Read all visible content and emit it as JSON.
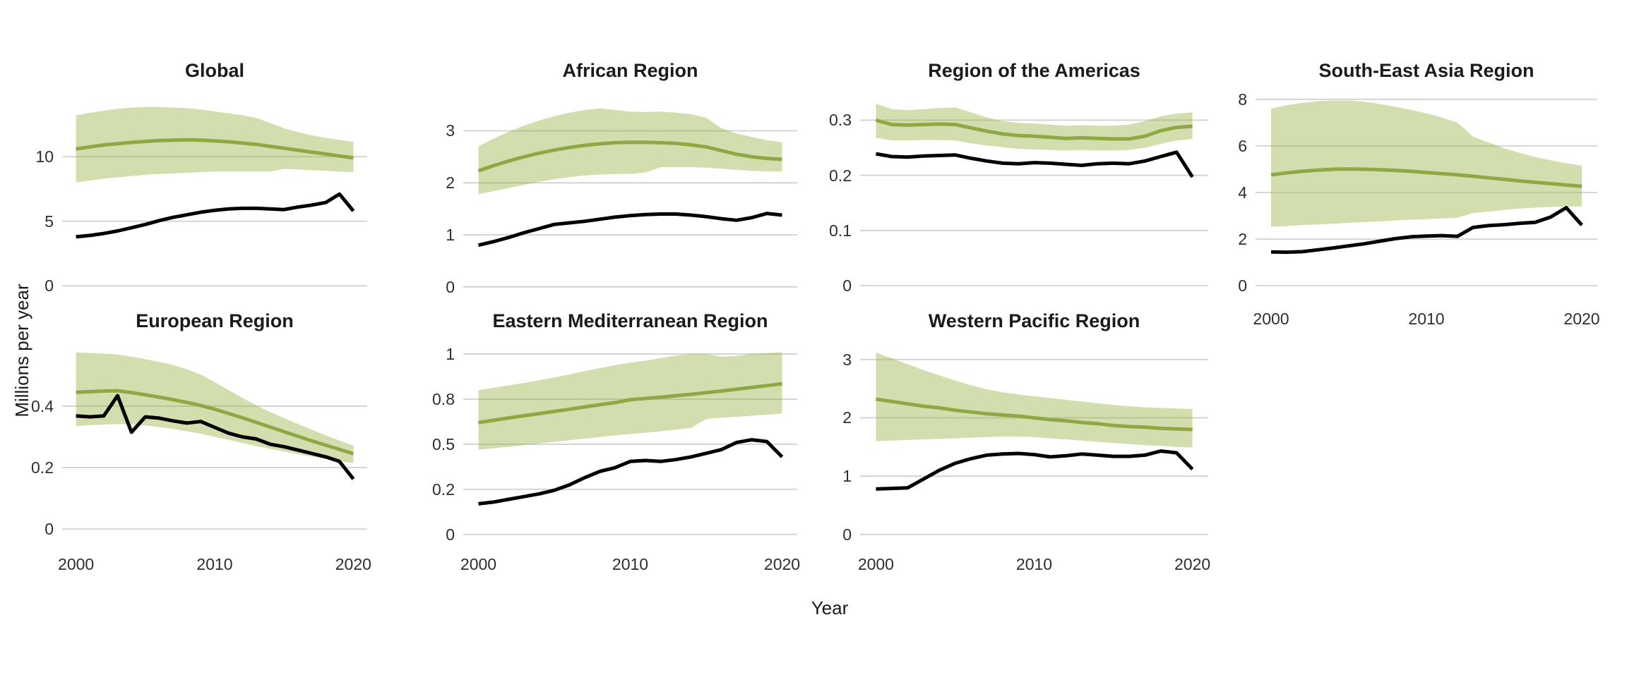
{
  "figure": {
    "background": "#ffffff"
  },
  "colors": {
    "band_apparent": "#d5dcb1",
    "band_base": "#9db64e",
    "band_opacity": 0.45,
    "estimate_line": "#8fa844",
    "notified_line": "#000000",
    "gridline": "#d4d4d4",
    "title_text": "#1b1b1b",
    "tick_text": "#2e2e2e"
  },
  "chart_data": {
    "type": "line",
    "xlabel": "Year",
    "ylabel": "Millions per year",
    "grid": "horizontal-only",
    "legend": "none",
    "years": [
      2000,
      2001,
      2002,
      2003,
      2004,
      2005,
      2006,
      2007,
      2008,
      2009,
      2010,
      2011,
      2012,
      2013,
      2014,
      2015,
      2016,
      2017,
      2018,
      2019,
      2020
    ],
    "panels": [
      {
        "id": "global",
        "title": "Global",
        "col": 0,
        "row": 0,
        "xlim": [
          1999,
          2021
        ],
        "ylim": [
          -0.8,
          15.3
        ],
        "xticks": [
          2000,
          2010,
          2020
        ],
        "show_x_labels": false,
        "yticks": [
          {
            "v": 0,
            "label": "0"
          },
          {
            "v": 5,
            "label": "5"
          },
          {
            "v": 10,
            "label": "10"
          }
        ],
        "series": {
          "green_line": [
            10.6,
            10.75,
            10.9,
            11.0,
            11.1,
            11.18,
            11.25,
            11.28,
            11.3,
            11.28,
            11.22,
            11.15,
            11.05,
            10.95,
            10.8,
            10.65,
            10.5,
            10.35,
            10.2,
            10.05,
            9.9
          ],
          "band_upper": [
            13.2,
            13.4,
            13.55,
            13.7,
            13.8,
            13.85,
            13.85,
            13.8,
            13.75,
            13.65,
            13.5,
            13.35,
            13.2,
            13.0,
            12.6,
            12.2,
            11.9,
            11.65,
            11.45,
            11.3,
            11.15
          ],
          "band_lower": [
            8.0,
            8.15,
            8.3,
            8.4,
            8.5,
            8.6,
            8.65,
            8.7,
            8.75,
            8.8,
            8.85,
            8.85,
            8.85,
            8.85,
            8.85,
            9.05,
            9.0,
            8.95,
            8.9,
            8.85,
            8.8
          ],
          "black_line": [
            3.8,
            3.9,
            4.05,
            4.25,
            4.5,
            4.75,
            5.05,
            5.3,
            5.5,
            5.7,
            5.85,
            5.95,
            6.0,
            6.0,
            5.95,
            5.9,
            6.1,
            6.25,
            6.45,
            7.1,
            5.8
          ]
        }
      },
      {
        "id": "african",
        "title": "African Region",
        "col": 1,
        "row": 0,
        "xlim": [
          1999,
          2021
        ],
        "ylim": [
          -0.18,
          3.82
        ],
        "xticks": [
          2000,
          2010,
          2020
        ],
        "show_x_labels": false,
        "yticks": [
          {
            "v": 0,
            "label": "0"
          },
          {
            "v": 1,
            "label": "1"
          },
          {
            "v": 2,
            "label": "2"
          },
          {
            "v": 3,
            "label": "3"
          }
        ],
        "series": {
          "green_line": [
            2.23,
            2.33,
            2.42,
            2.5,
            2.57,
            2.63,
            2.68,
            2.72,
            2.75,
            2.77,
            2.78,
            2.78,
            2.77,
            2.76,
            2.73,
            2.69,
            2.62,
            2.55,
            2.5,
            2.47,
            2.45
          ],
          "band_upper": [
            2.7,
            2.85,
            2.98,
            3.1,
            3.2,
            3.28,
            3.35,
            3.4,
            3.43,
            3.4,
            3.37,
            3.36,
            3.37,
            3.35,
            3.32,
            3.25,
            3.05,
            2.95,
            2.88,
            2.82,
            2.78
          ],
          "band_lower": [
            1.78,
            1.84,
            1.9,
            1.96,
            2.02,
            2.07,
            2.11,
            2.14,
            2.16,
            2.17,
            2.17,
            2.2,
            2.3,
            2.3,
            2.3,
            2.29,
            2.27,
            2.25,
            2.23,
            2.22,
            2.22
          ],
          "black_line": [
            0.8,
            0.87,
            0.95,
            1.04,
            1.12,
            1.2,
            1.23,
            1.26,
            1.3,
            1.34,
            1.37,
            1.39,
            1.4,
            1.4,
            1.38,
            1.35,
            1.31,
            1.28,
            1.33,
            1.41,
            1.38
          ]
        }
      },
      {
        "id": "americas",
        "title": "Region of the Americas",
        "col": 2,
        "row": 0,
        "xlim": [
          1999,
          2021
        ],
        "ylim": [
          -0.019,
          0.358
        ],
        "xticks": [
          2000,
          2010,
          2020
        ],
        "show_x_labels": false,
        "yticks": [
          {
            "v": 0,
            "label": "0"
          },
          {
            "v": 0.1,
            "label": "0.1"
          },
          {
            "v": 0.2,
            "label": "0.2"
          },
          {
            "v": 0.3,
            "label": "0.3"
          }
        ],
        "series": {
          "green_line": [
            0.3,
            0.292,
            0.291,
            0.292,
            0.293,
            0.292,
            0.286,
            0.28,
            0.275,
            0.272,
            0.271,
            0.269,
            0.267,
            0.268,
            0.267,
            0.266,
            0.266,
            0.271,
            0.281,
            0.287,
            0.289
          ],
          "band_upper": [
            0.33,
            0.32,
            0.318,
            0.32,
            0.322,
            0.323,
            0.314,
            0.305,
            0.298,
            0.295,
            0.294,
            0.292,
            0.29,
            0.291,
            0.29,
            0.29,
            0.292,
            0.298,
            0.307,
            0.312,
            0.314
          ],
          "band_lower": [
            0.268,
            0.263,
            0.263,
            0.264,
            0.264,
            0.263,
            0.258,
            0.254,
            0.251,
            0.248,
            0.247,
            0.246,
            0.245,
            0.246,
            0.245,
            0.245,
            0.246,
            0.25,
            0.257,
            0.263,
            0.266
          ],
          "black_line": [
            0.239,
            0.234,
            0.233,
            0.235,
            0.236,
            0.237,
            0.231,
            0.226,
            0.222,
            0.221,
            0.223,
            0.222,
            0.22,
            0.218,
            0.221,
            0.222,
            0.221,
            0.226,
            0.234,
            0.242,
            0.197
          ]
        }
      },
      {
        "id": "south-east-asia",
        "title": "South-East Asia Region",
        "col": 3,
        "row": 0,
        "xlim": [
          1999,
          2021
        ],
        "ylim": [
          -0.45,
          8.48
        ],
        "xticks": [
          2000,
          2010,
          2020
        ],
        "show_x_labels": true,
        "yticks": [
          {
            "v": 0,
            "label": "0"
          },
          {
            "v": 2,
            "label": "2"
          },
          {
            "v": 4,
            "label": "4"
          },
          {
            "v": 6,
            "label": "6"
          },
          {
            "v": 8,
            "label": "8"
          }
        ],
        "series": {
          "green_line": [
            4.76,
            4.84,
            4.91,
            4.96,
            5.0,
            5.01,
            5.0,
            4.98,
            4.95,
            4.91,
            4.86,
            4.81,
            4.76,
            4.7,
            4.63,
            4.57,
            4.5,
            4.44,
            4.38,
            4.32,
            4.27
          ],
          "band_upper": [
            7.6,
            7.75,
            7.85,
            7.92,
            7.95,
            7.95,
            7.9,
            7.8,
            7.68,
            7.55,
            7.4,
            7.22,
            7.0,
            6.4,
            6.15,
            5.9,
            5.7,
            5.52,
            5.38,
            5.26,
            5.15
          ],
          "band_lower": [
            2.53,
            2.56,
            2.6,
            2.63,
            2.66,
            2.7,
            2.73,
            2.76,
            2.8,
            2.83,
            2.86,
            2.89,
            2.92,
            3.12,
            3.18,
            3.25,
            3.31,
            3.35,
            3.38,
            3.4,
            3.4
          ],
          "black_line": [
            1.45,
            1.44,
            1.46,
            1.54,
            1.62,
            1.71,
            1.8,
            1.91,
            2.02,
            2.1,
            2.13,
            2.15,
            2.12,
            2.5,
            2.58,
            2.62,
            2.68,
            2.72,
            2.95,
            3.35,
            2.6
          ]
        }
      },
      {
        "id": "european",
        "title": "European Region",
        "col": 0,
        "row": 1,
        "xlim": [
          1999,
          2021
        ],
        "ylim": [
          -0.05,
          0.62
        ],
        "xticks": [
          2000,
          2010,
          2020
        ],
        "show_x_labels": true,
        "yticks": [
          {
            "v": 0,
            "label": "0"
          },
          {
            "v": 0.2,
            "label": "0.2"
          },
          {
            "v": 0.4,
            "label": "0.4"
          }
        ],
        "series": {
          "green_line": [
            0.445,
            0.447,
            0.449,
            0.45,
            0.444,
            0.437,
            0.429,
            0.421,
            0.412,
            0.402,
            0.39,
            0.376,
            0.362,
            0.347,
            0.332,
            0.317,
            0.302,
            0.287,
            0.273,
            0.259,
            0.245
          ],
          "band_upper": [
            0.575,
            0.573,
            0.571,
            0.568,
            0.561,
            0.553,
            0.544,
            0.534,
            0.52,
            0.502,
            0.478,
            0.452,
            0.427,
            0.403,
            0.381,
            0.361,
            0.342,
            0.323,
            0.305,
            0.288,
            0.272
          ],
          "band_lower": [
            0.335,
            0.338,
            0.34,
            0.342,
            0.34,
            0.337,
            0.332,
            0.326,
            0.318,
            0.31,
            0.3,
            0.29,
            0.28,
            0.27,
            0.261,
            0.252,
            0.244,
            0.236,
            0.228,
            0.221,
            0.214
          ],
          "black_line": [
            0.368,
            0.365,
            0.368,
            0.434,
            0.315,
            0.365,
            0.361,
            0.352,
            0.345,
            0.35,
            0.331,
            0.312,
            0.3,
            0.293,
            0.276,
            0.268,
            0.257,
            0.246,
            0.235,
            0.22,
            0.163
          ]
        }
      },
      {
        "id": "eastern-mediterranean",
        "title": "Eastern Mediterranean Region",
        "col": 1,
        "row": 1,
        "xlim": [
          1999,
          2021
        ],
        "ylim": [
          -0.055,
          1.086
        ],
        "xticks": [
          2000,
          2010,
          2020
        ],
        "show_x_labels": true,
        "yticks": [
          {
            "v": 0,
            "label": "0"
          },
          {
            "v": 0.25,
            "label": "0.2"
          },
          {
            "v": 0.5,
            "label": "0.5"
          },
          {
            "v": 0.75,
            "label": "0.8"
          },
          {
            "v": 1,
            "label": "1"
          }
        ],
        "series": {
          "green_line": [
            0.62,
            0.633,
            0.646,
            0.658,
            0.67,
            0.682,
            0.694,
            0.707,
            0.719,
            0.731,
            0.747,
            0.754,
            0.761,
            0.769,
            0.777,
            0.786,
            0.795,
            0.805,
            0.815,
            0.825,
            0.835
          ],
          "band_upper": [
            0.8,
            0.813,
            0.826,
            0.84,
            0.855,
            0.87,
            0.887,
            0.905,
            0.922,
            0.938,
            0.952,
            0.963,
            0.977,
            0.992,
            1.0,
            1.0,
            0.985,
            0.99,
            1.0,
            1.005,
            1.01
          ],
          "band_lower": [
            0.47,
            0.478,
            0.486,
            0.495,
            0.504,
            0.513,
            0.522,
            0.531,
            0.54,
            0.549,
            0.557,
            0.564,
            0.572,
            0.581,
            0.59,
            0.64,
            0.647,
            0.652,
            0.658,
            0.664,
            0.67
          ],
          "black_line": [
            0.17,
            0.18,
            0.195,
            0.21,
            0.225,
            0.245,
            0.275,
            0.315,
            0.35,
            0.37,
            0.405,
            0.41,
            0.405,
            0.415,
            0.43,
            0.45,
            0.47,
            0.51,
            0.525,
            0.515,
            0.43
          ]
        }
      },
      {
        "id": "western-pacific",
        "title": "Western Pacific Region",
        "col": 2,
        "row": 1,
        "xlim": [
          1999,
          2021
        ],
        "ylim": [
          -0.17,
          3.36
        ],
        "xticks": [
          2000,
          2010,
          2020
        ],
        "show_x_labels": true,
        "yticks": [
          {
            "v": 0,
            "label": "0"
          },
          {
            "v": 1,
            "label": "1"
          },
          {
            "v": 2,
            "label": "2"
          },
          {
            "v": 3,
            "label": "3"
          }
        ],
        "series": {
          "green_line": [
            2.32,
            2.28,
            2.24,
            2.2,
            2.17,
            2.13,
            2.1,
            2.07,
            2.05,
            2.03,
            2.0,
            1.97,
            1.95,
            1.92,
            1.9,
            1.87,
            1.85,
            1.84,
            1.82,
            1.81,
            1.8
          ],
          "band_upper": [
            3.12,
            3.02,
            2.92,
            2.82,
            2.73,
            2.64,
            2.56,
            2.49,
            2.44,
            2.4,
            2.37,
            2.34,
            2.31,
            2.28,
            2.25,
            2.22,
            2.2,
            2.18,
            2.17,
            2.16,
            2.15
          ],
          "band_lower": [
            1.6,
            1.61,
            1.62,
            1.63,
            1.64,
            1.65,
            1.66,
            1.67,
            1.68,
            1.68,
            1.67,
            1.65,
            1.63,
            1.61,
            1.59,
            1.57,
            1.55,
            1.53,
            1.52,
            1.5,
            1.49
          ],
          "black_line": [
            0.78,
            0.79,
            0.8,
            0.95,
            1.1,
            1.22,
            1.3,
            1.36,
            1.38,
            1.39,
            1.37,
            1.33,
            1.35,
            1.38,
            1.36,
            1.34,
            1.34,
            1.36,
            1.43,
            1.4,
            1.12
          ]
        }
      }
    ]
  }
}
